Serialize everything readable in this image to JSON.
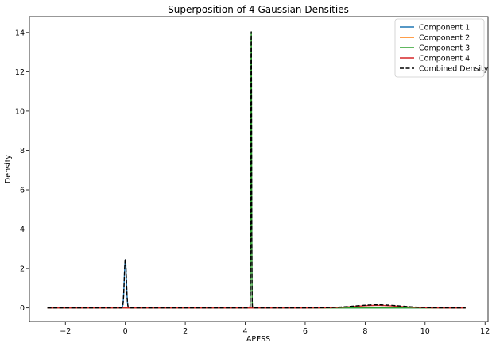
{
  "chart_data": {
    "type": "line",
    "title": "Superposition of 4 Gaussian Densities",
    "xlabel": "APESS",
    "ylabel": "Density",
    "xlim": [
      -3.2,
      12.1
    ],
    "ylim": [
      -0.7,
      14.8
    ],
    "xticks": [
      -2,
      0,
      2,
      4,
      6,
      8,
      10,
      12
    ],
    "xtick_labels": [
      "−2",
      "0",
      "2",
      "4",
      "6",
      "8",
      "10",
      "12"
    ],
    "yticks": [
      0,
      2,
      4,
      6,
      8,
      10,
      12,
      14
    ],
    "ytick_labels": [
      "0",
      "2",
      "4",
      "6",
      "8",
      "10",
      "12",
      "14"
    ],
    "grid": false,
    "legend_position": "top-right",
    "x_range": [
      -2.6,
      11.35
    ],
    "series": [
      {
        "name": "Component 1",
        "color": "#1f77b4",
        "style": "solid",
        "gaussian": {
          "mean": 0.0,
          "std": 0.035,
          "peak": 2.45
        }
      },
      {
        "name": "Component 2",
        "color": "#ff7f0e",
        "style": "solid",
        "gaussian": {
          "mean": 8.5,
          "std": 0.9,
          "peak": 0.03
        }
      },
      {
        "name": "Component 3",
        "color": "#2ca02c",
        "style": "solid",
        "gaussian": {
          "mean": 4.2,
          "std": 0.012,
          "peak": 14.05
        }
      },
      {
        "name": "Component 4",
        "color": "#d62728",
        "style": "solid",
        "gaussian": {
          "mean": 8.4,
          "std": 0.75,
          "peak": 0.13
        }
      },
      {
        "name": "Combined Density",
        "color": "#000000",
        "style": "dashed",
        "sum_of": [
          "Component 1",
          "Component 2",
          "Component 3",
          "Component 4"
        ]
      }
    ]
  }
}
